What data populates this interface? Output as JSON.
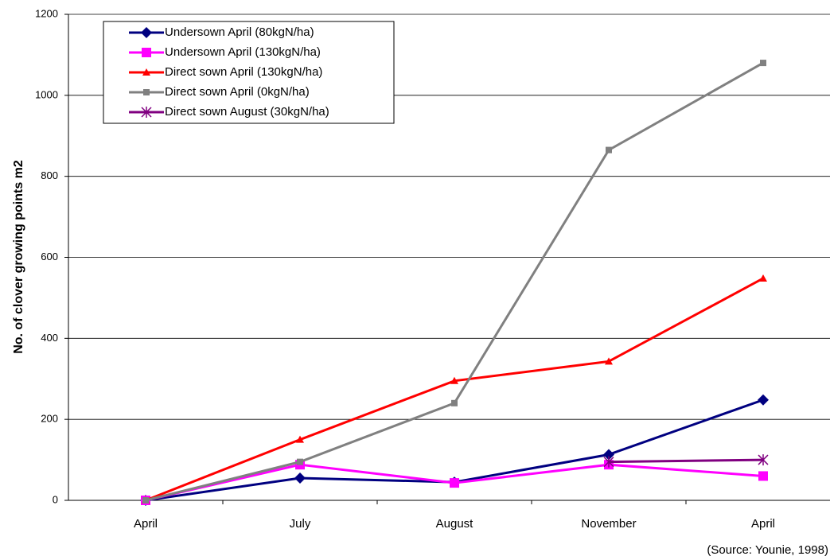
{
  "chart_data": {
    "type": "line",
    "y_label": "No. of clover growing points m2",
    "source": "(Source: Younie, 1998)",
    "categories": [
      "April",
      "July",
      "August",
      "November",
      "April"
    ],
    "series": [
      {
        "name": "Undersown April (80kgN/ha)",
        "color": "#000080",
        "marker": "diamond",
        "values": [
          0,
          55,
          45,
          113,
          248
        ]
      },
      {
        "name": "Undersown April (130kgN/ha)",
        "color": "#ff00ff",
        "marker": "square",
        "values": [
          0,
          88,
          43,
          88,
          60
        ]
      },
      {
        "name": "Direct sown April (130kgN/ha)",
        "color": "#ff0000",
        "marker": "triangle",
        "values": [
          0,
          150,
          295,
          343,
          548
        ]
      },
      {
        "name": "Direct sown April (0kgN/ha)",
        "color": "#808080",
        "marker": "bar",
        "values": [
          0,
          95,
          240,
          865,
          1080
        ]
      },
      {
        "name": "Direct sown August (30kgN/ha)",
        "color": "#800080",
        "marker": "star",
        "values": [
          null,
          null,
          null,
          95,
          100
        ]
      }
    ],
    "ylim": [
      0,
      1200
    ],
    "yticks": [
      0,
      200,
      400,
      600,
      800,
      1000,
      1200
    ],
    "grid": true,
    "legend": "upper left"
  }
}
